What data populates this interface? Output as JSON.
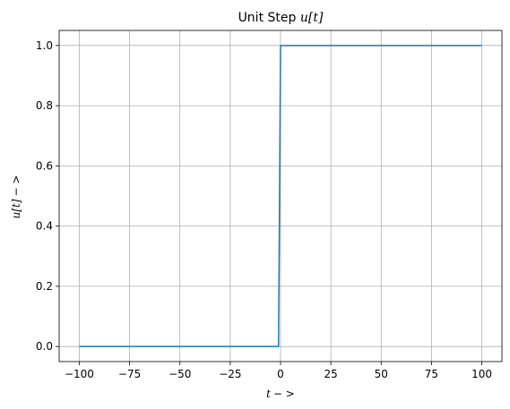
{
  "chart_data": {
    "type": "line",
    "title": {
      "prefix": "Unit Step ",
      "math": "u[t]"
    },
    "xlabel": {
      "math": "t",
      "suffix": "− >"
    },
    "ylabel": {
      "math": "u[t]",
      "suffix": "− >"
    },
    "xlim": [
      -110,
      110
    ],
    "ylim": [
      -0.05,
      1.05
    ],
    "xticks": [
      -100,
      -75,
      -50,
      -25,
      0,
      25,
      50,
      75,
      100
    ],
    "xtick_labels": [
      "−100",
      "−75",
      "−50",
      "−25",
      "0",
      "25",
      "50",
      "75",
      "100"
    ],
    "yticks": [
      0.0,
      0.2,
      0.4,
      0.6,
      0.8,
      1.0
    ],
    "ytick_labels": [
      "0.0",
      "0.2",
      "0.4",
      "0.6",
      "0.8",
      "1.0"
    ],
    "grid": true,
    "series": [
      {
        "color": "#1f77b4",
        "x": [
          -100,
          -1,
          0,
          100
        ],
        "y": [
          0,
          0,
          1,
          1
        ]
      }
    ]
  }
}
